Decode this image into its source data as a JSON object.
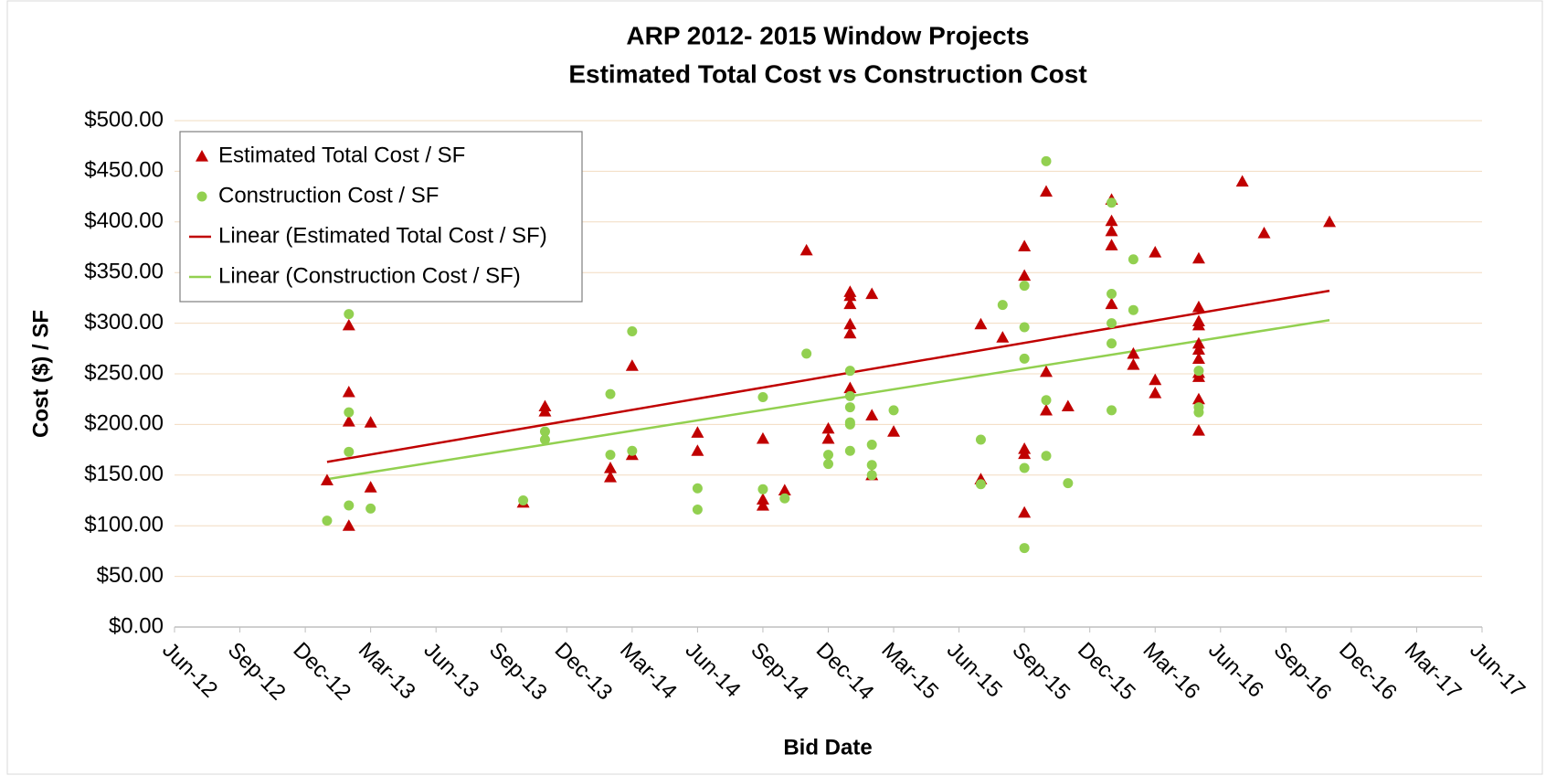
{
  "chart_data": {
    "type": "scatter",
    "title": "ARP 2012- 2015 Window Projects",
    "subtitle": "Estimated Total Cost vs Construction Cost",
    "x_label": "Bid Date",
    "y_label": "Cost ($) / SF",
    "xlim": [
      "2012-06",
      "2017-06"
    ],
    "xticks": [
      {
        "value": "2012-06",
        "label": "Jun-12"
      },
      {
        "value": "2012-09",
        "label": "Sep-12"
      },
      {
        "value": "2012-12",
        "label": "Dec-12"
      },
      {
        "value": "2013-03",
        "label": "Mar-13"
      },
      {
        "value": "2013-06",
        "label": "Jun-13"
      },
      {
        "value": "2013-09",
        "label": "Sep-13"
      },
      {
        "value": "2013-12",
        "label": "Dec-13"
      },
      {
        "value": "2014-03",
        "label": "Mar-14"
      },
      {
        "value": "2014-06",
        "label": "Jun-14"
      },
      {
        "value": "2014-09",
        "label": "Sep-14"
      },
      {
        "value": "2014-12",
        "label": "Dec-14"
      },
      {
        "value": "2015-03",
        "label": "Mar-15"
      },
      {
        "value": "2015-06",
        "label": "Jun-15"
      },
      {
        "value": "2015-09",
        "label": "Sep-15"
      },
      {
        "value": "2015-12",
        "label": "Dec-15"
      },
      {
        "value": "2016-03",
        "label": "Mar-16"
      },
      {
        "value": "2016-06",
        "label": "Jun-16"
      },
      {
        "value": "2016-09",
        "label": "Sep-16"
      },
      {
        "value": "2016-12",
        "label": "Dec-16"
      },
      {
        "value": "2017-03",
        "label": "Mar-17"
      },
      {
        "value": "2017-06",
        "label": "Jun-17"
      }
    ],
    "ylim": [
      0,
      500
    ],
    "yticks": [
      {
        "value": 0,
        "label": "$0.00"
      },
      {
        "value": 50,
        "label": "$50.00"
      },
      {
        "value": 100,
        "label": "$100.00"
      },
      {
        "value": 150,
        "label": "$150.00"
      },
      {
        "value": 200,
        "label": "$200.00"
      },
      {
        "value": 250,
        "label": "$250.00"
      },
      {
        "value": 300,
        "label": "$300.00"
      },
      {
        "value": 350,
        "label": "$350.00"
      },
      {
        "value": 400,
        "label": "$400.00"
      },
      {
        "value": 450,
        "label": "$450.00"
      },
      {
        "value": 500,
        "label": "$500.00"
      }
    ],
    "grid": true,
    "legend": "top-left",
    "series": [
      {
        "name": "Estimated Total Cost / SF",
        "color": "#c00000",
        "marker": "triangle",
        "x": [
          "2013-01",
          "2013-02",
          "2013-02",
          "2013-02",
          "2013-02",
          "2013-03",
          "2013-03",
          "2013-10",
          "2013-11",
          "2013-11",
          "2014-02",
          "2014-02",
          "2014-03",
          "2014-03",
          "2014-06",
          "2014-06",
          "2014-09",
          "2014-09",
          "2014-09",
          "2014-10",
          "2014-11",
          "2014-12",
          "2014-12",
          "2015-01",
          "2015-01",
          "2015-01",
          "2015-01",
          "2015-01",
          "2015-01",
          "2015-02",
          "2015-02",
          "2015-02",
          "2015-03",
          "2015-07",
          "2015-07",
          "2015-08",
          "2015-09",
          "2015-09",
          "2015-09",
          "2015-09",
          "2015-09",
          "2015-10",
          "2015-10",
          "2015-10",
          "2015-11",
          "2016-01",
          "2016-01",
          "2016-01",
          "2016-01",
          "2016-01",
          "2016-02",
          "2016-02",
          "2016-03",
          "2016-03",
          "2016-03",
          "2016-05",
          "2016-05",
          "2016-05",
          "2016-05",
          "2016-05",
          "2016-05",
          "2016-05",
          "2016-05",
          "2016-05",
          "2016-05",
          "2016-05",
          "2016-07",
          "2016-08",
          "2016-11"
        ],
        "values": [
          145,
          100,
          298,
          232,
          203,
          138,
          202,
          123,
          218,
          213,
          157,
          148,
          170,
          258,
          192,
          174,
          186,
          126,
          120,
          135,
          372,
          196,
          186,
          331,
          327,
          299,
          290,
          236,
          319,
          329,
          150,
          209,
          193,
          299,
          146,
          286,
          376,
          347,
          171,
          176,
          113,
          252,
          214,
          430,
          218,
          422,
          401,
          377,
          319,
          391,
          270,
          259,
          244,
          231,
          370,
          316,
          302,
          265,
          194,
          364,
          298,
          274,
          280,
          225,
          251,
          247,
          440,
          389,
          400
        ]
      },
      {
        "name": "Construction Cost / SF",
        "color": "#92d050",
        "marker": "circle",
        "x": [
          "2013-01",
          "2013-02",
          "2013-02",
          "2013-02",
          "2013-02",
          "2013-03",
          "2013-10",
          "2013-11",
          "2013-11",
          "2014-02",
          "2014-02",
          "2014-03",
          "2014-03",
          "2014-06",
          "2014-06",
          "2014-09",
          "2014-09",
          "2014-10",
          "2014-11",
          "2014-12",
          "2014-12",
          "2015-01",
          "2015-01",
          "2015-01",
          "2015-01",
          "2015-01",
          "2015-01",
          "2015-02",
          "2015-02",
          "2015-02",
          "2015-03",
          "2015-07",
          "2015-07",
          "2015-08",
          "2015-09",
          "2015-09",
          "2015-09",
          "2015-09",
          "2015-09",
          "2015-10",
          "2015-10",
          "2015-10",
          "2015-11",
          "2016-01",
          "2016-01",
          "2016-01",
          "2016-01",
          "2016-01",
          "2016-02",
          "2016-02",
          "2016-05",
          "2016-05",
          "2016-05"
        ],
        "values": [
          105,
          309,
          212,
          173,
          120,
          117,
          125,
          193,
          185,
          230,
          170,
          292,
          174,
          137,
          116,
          227,
          136,
          127,
          270,
          170,
          161,
          253,
          228,
          217,
          202,
          174,
          200,
          180,
          160,
          150,
          214,
          141,
          185,
          318,
          157,
          78,
          265,
          296,
          337,
          224,
          169,
          460,
          142,
          419,
          329,
          300,
          214,
          280,
          313,
          363,
          253,
          217,
          212
        ]
      }
    ],
    "trendlines": [
      {
        "name": "Linear (Estimated Total Cost / SF)",
        "color": "#c00000",
        "x": [
          "2013-01",
          "2016-11"
        ],
        "values": [
          163,
          332
        ]
      },
      {
        "name": "Linear (Construction Cost / SF)",
        "color": "#92d050",
        "x": [
          "2013-01",
          "2016-11"
        ],
        "values": [
          146,
          303
        ]
      }
    ]
  }
}
